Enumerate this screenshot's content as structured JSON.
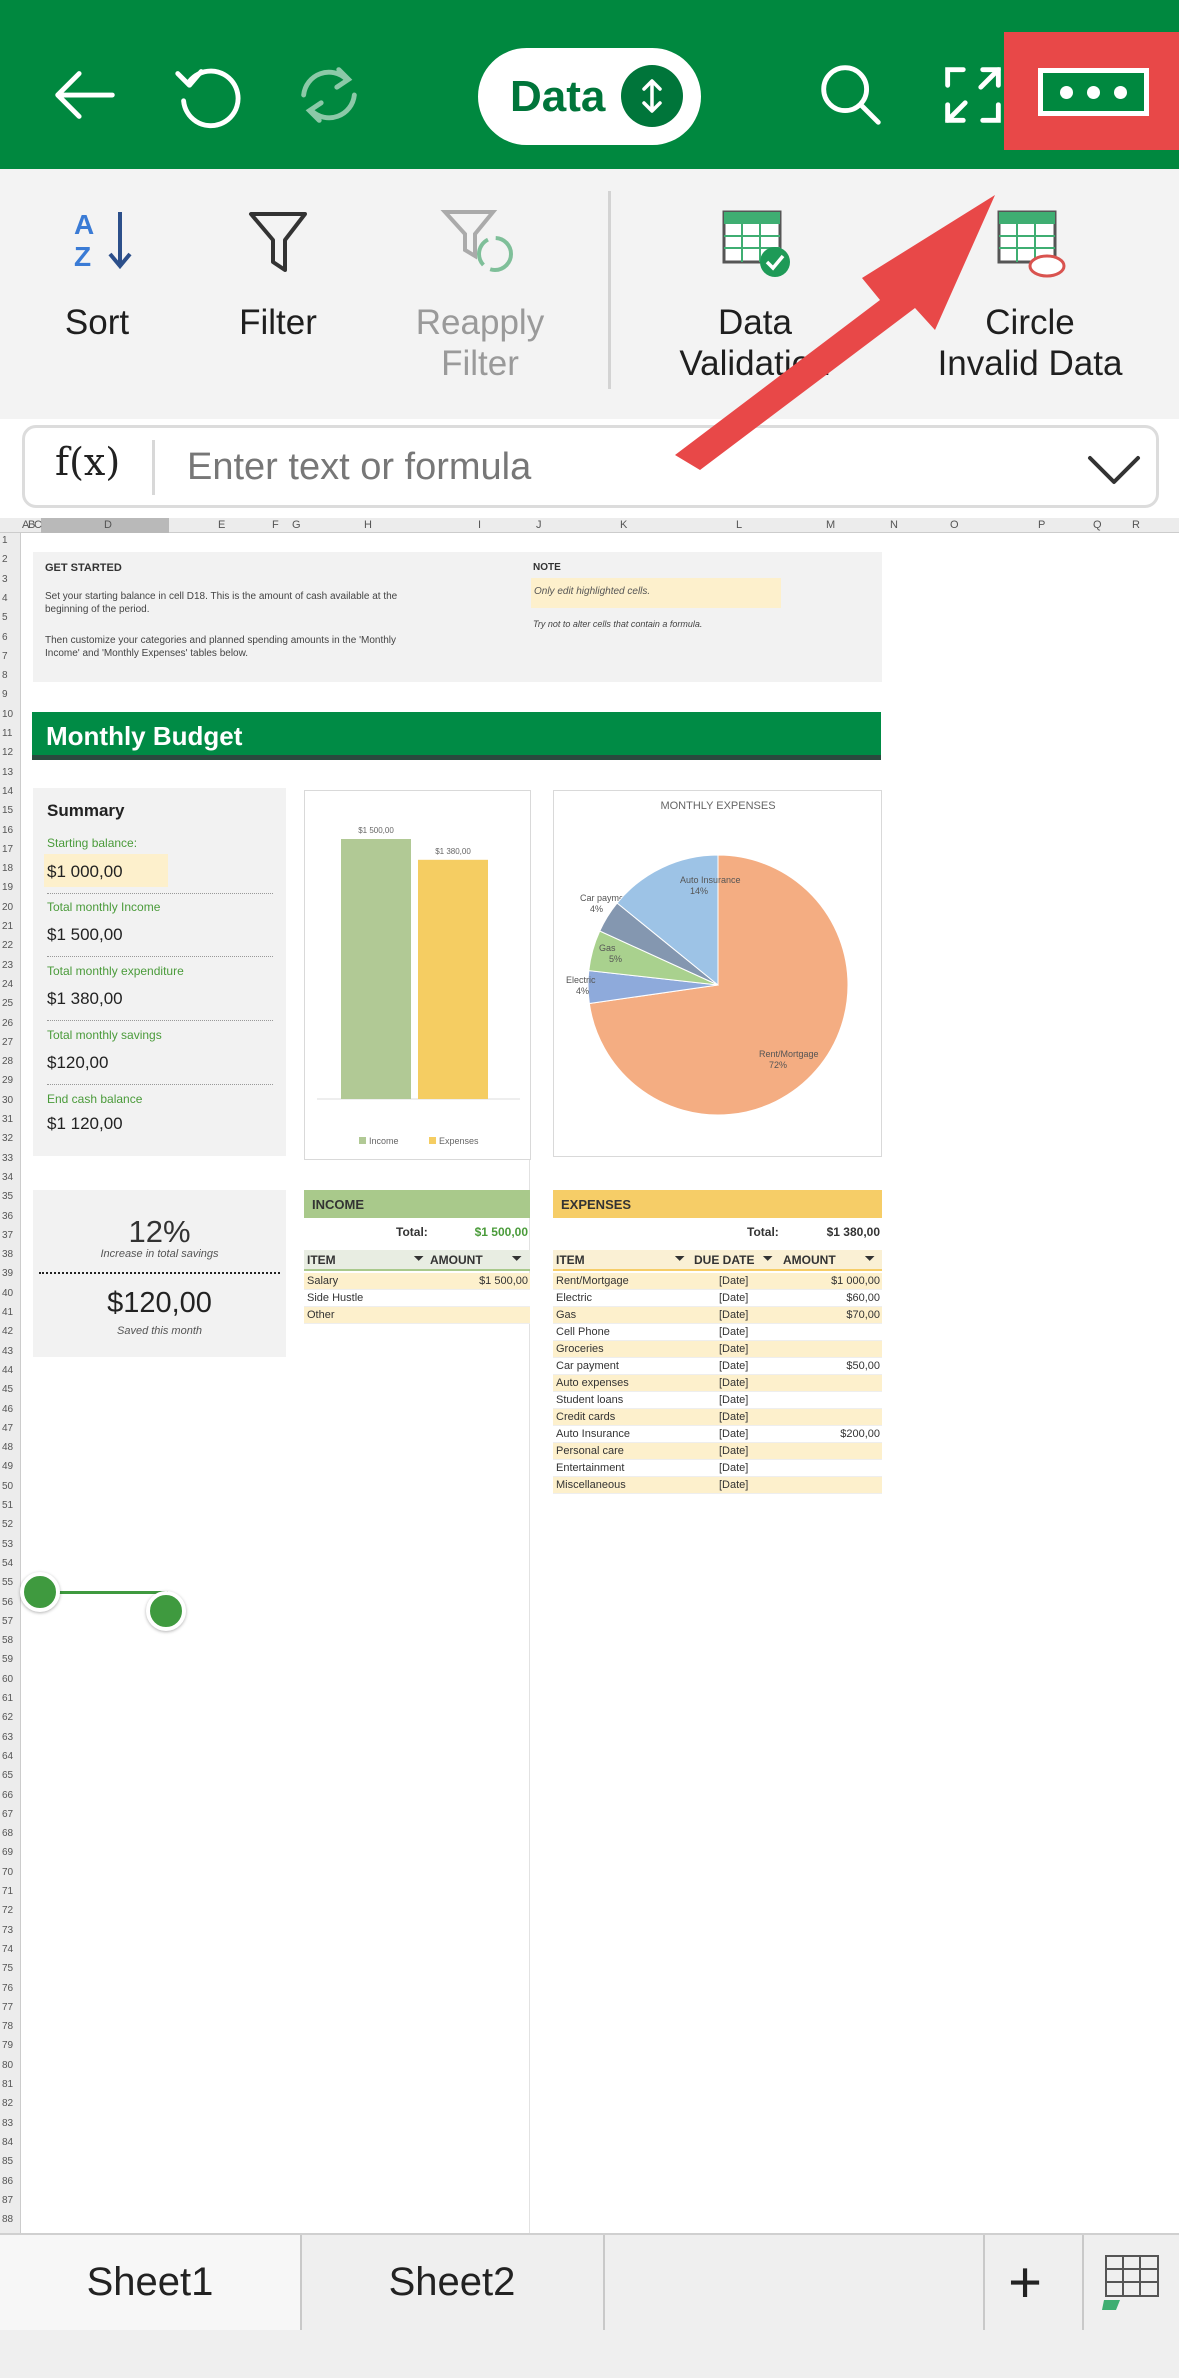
{
  "toolbar": {
    "tab_label": "Data"
  },
  "ribbon": {
    "sort": "Sort",
    "filter": "Filter",
    "reapply_line1": "Reapply",
    "reapply_line2": "Filter",
    "data_validation_line1": "Data",
    "data_validation_line2": "Validation",
    "circle_line1": "Circle",
    "circle_line2": "Invalid Data"
  },
  "formula_bar": {
    "fx": "f(x)",
    "placeholder": "Enter text or formula"
  },
  "columns": [
    "A",
    "B",
    "C",
    "D",
    "E",
    "F",
    "G",
    "H",
    "I",
    "J",
    "K",
    "L",
    "M",
    "N",
    "O",
    "P",
    "Q",
    "R"
  ],
  "sheet": {
    "get_started_title": "GET STARTED",
    "get_started_p1": "Set your starting balance in cell D18. This is the amount of cash available at the beginning of the period.",
    "get_started_p2": "Then customize your categories and planned spending amounts in the 'Monthly Income' and 'Monthly Expenses' tables below.",
    "note_title": "NOTE",
    "note_highlight": "Only edit highlighted cells.",
    "note_text": "Try not to alter cells that contain a formula.",
    "banner": "Monthly Budget",
    "summary": {
      "title": "Summary",
      "starting_label": "Starting balance:",
      "starting_value": "$1 000,00",
      "income_label": "Total monthly Income",
      "income_value": "$1 500,00",
      "expenditure_label": "Total monthly expenditure",
      "expenditure_value": "$1 380,00",
      "savings_label": "Total monthly savings",
      "savings_value": "$120,00",
      "end_label": "End cash balance",
      "end_value": "$1 120,00"
    },
    "savings_card": {
      "pct": "12%",
      "pct_caption": "Increase in total savings",
      "amount": "$120,00",
      "amount_caption": "Saved this month"
    },
    "income": {
      "title": "INCOME",
      "total_label": "Total:",
      "total_value": "$1 500,00",
      "col_item": "ITEM",
      "col_amount": "AMOUNT",
      "rows": [
        {
          "item": "Salary",
          "amount": "$1 500,00"
        },
        {
          "item": "Side Hustle",
          "amount": ""
        },
        {
          "item": "Other",
          "amount": ""
        }
      ]
    },
    "expenses": {
      "title": "EXPENSES",
      "total_label": "Total:",
      "total_value": "$1 380,00",
      "col_item": "ITEM",
      "col_due": "DUE DATE",
      "col_amount": "AMOUNT",
      "rows": [
        {
          "item": "Rent/Mortgage",
          "due": "[Date]",
          "amount": "$1 000,00"
        },
        {
          "item": "Electric",
          "due": "[Date]",
          "amount": "$60,00"
        },
        {
          "item": "Gas",
          "due": "[Date]",
          "amount": "$70,00"
        },
        {
          "item": "Cell Phone",
          "due": "[Date]",
          "amount": ""
        },
        {
          "item": "Groceries",
          "due": "[Date]",
          "amount": ""
        },
        {
          "item": "Car payment",
          "due": "[Date]",
          "amount": "$50,00"
        },
        {
          "item": "Auto expenses",
          "due": "[Date]",
          "amount": ""
        },
        {
          "item": "Student loans",
          "due": "[Date]",
          "amount": ""
        },
        {
          "item": "Credit cards",
          "due": "[Date]",
          "amount": ""
        },
        {
          "item": "Auto Insurance",
          "due": "[Date]",
          "amount": "$200,00"
        },
        {
          "item": "Personal care",
          "due": "[Date]",
          "amount": ""
        },
        {
          "item": "Entertainment",
          "due": "[Date]",
          "amount": ""
        },
        {
          "item": "Miscellaneous",
          "due": "[Date]",
          "amount": ""
        }
      ]
    }
  },
  "chart_data": [
    {
      "type": "bar",
      "categories": [
        "Income",
        "Expenses"
      ],
      "values": [
        1500,
        1380
      ],
      "data_labels": [
        "$1 500,00",
        "$1 380,00"
      ],
      "colors": [
        "#b1c995",
        "#f5cd62"
      ],
      "legend": "bottom",
      "title": ""
    },
    {
      "type": "pie",
      "title": "MONTHLY EXPENSES",
      "slices": [
        {
          "label": "Rent/Mortgage",
          "pct_label": "72%",
          "value": 72,
          "color": "#f4ad82"
        },
        {
          "label": "Electric",
          "pct_label": "4%",
          "value": 4,
          "color": "#8eaadb"
        },
        {
          "label": "Gas",
          "pct_label": "5%",
          "value": 5,
          "color": "#a9d18e"
        },
        {
          "label": "Car payment",
          "pct_label": "4%",
          "value": 4,
          "color": "#8497b0"
        },
        {
          "label": "Auto Insurance",
          "pct_label": "14%",
          "value": 14,
          "color": "#9dc3e6"
        }
      ]
    }
  ],
  "tabs": {
    "sheet1": "Sheet1",
    "sheet2": "Sheet2"
  },
  "colors": {
    "brand": "#00883f",
    "annotation": "#e84848"
  }
}
